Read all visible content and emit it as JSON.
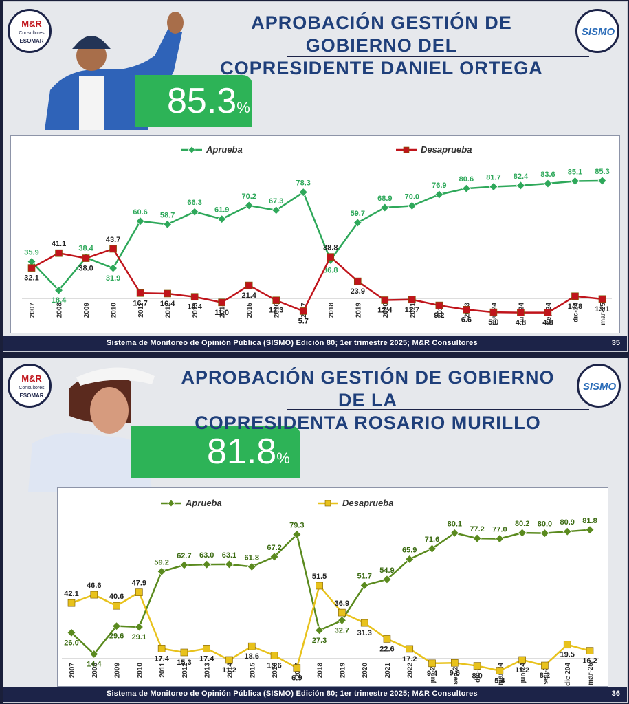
{
  "slides": [
    {
      "title_line1": "APROBACIÓN GESTIÓN DE GOBIERNO DEL",
      "title_line2": "COPRESIDENTE DANIEL ORTEGA",
      "headline_value": "85.3",
      "headline_unit": "%",
      "logo_left": {
        "name": "M&R",
        "sub": "Consultores",
        "esomar": "ESOMAR"
      },
      "logo_right": "SISMO",
      "footer": "Sistema de Monitoreo de Opinión Pública (SISMO) Edición 80; 1er trimestre 2025; M&R Consultores",
      "page_number": "35",
      "colors": {
        "aprueba": "#2ea85a",
        "desaprueba": "#c0141b",
        "badge": "#2db357"
      }
    },
    {
      "title_line1": "APROBACIÓN GESTIÓN DE GOBIERNO DE LA",
      "title_line2": "COPRESIDENTA ROSARIO MURILLO",
      "headline_value": "81.8",
      "headline_unit": "%",
      "logo_left": {
        "name": "M&R",
        "sub": "Consultores",
        "esomar": "ESOMAR"
      },
      "logo_right": "SISMO",
      "footer": "Sistema de Monitoreo de Opinión Pública (SISMO) Edición 80; 1er trimestre 2025; M&R Consultores",
      "page_number": "36",
      "colors": {
        "aprueba": "#5a8a1e",
        "desaprueba": "#e8c21c",
        "badge": "#2db357"
      }
    }
  ],
  "chart_data": [
    {
      "type": "line",
      "categories": [
        "2007",
        "2008",
        "2009",
        "2010",
        "2011",
        "2012",
        "2013",
        "2014",
        "2015",
        "2016",
        "2017",
        "2018",
        "2019",
        "2020",
        "2021",
        "2022",
        "2023",
        "mar-24",
        "jun-24",
        "sep-24",
        "dic-24",
        "mar-25"
      ],
      "series": [
        {
          "name": "Aprueba",
          "color": "#2ea85a",
          "marker": "diamond",
          "values": [
            35.9,
            18.4,
            38.4,
            31.9,
            60.6,
            58.7,
            66.3,
            61.9,
            70.2,
            67.3,
            78.3,
            36.8,
            59.7,
            68.9,
            70.0,
            76.9,
            80.6,
            81.7,
            82.4,
            83.6,
            85.1,
            85.3
          ]
        },
        {
          "name": "Desaprueba",
          "color": "#c0141b",
          "marker": "square",
          "values": [
            32.1,
            41.1,
            38.0,
            43.7,
            16.7,
            16.4,
            14.4,
            11.0,
            21.4,
            12.3,
            5.7,
            38.8,
            23.9,
            12.4,
            12.7,
            9.2,
            6.6,
            5.0,
            4.8,
            4.8,
            14.8,
            13.1
          ]
        }
      ],
      "legend_position": "top",
      "grid": false
    },
    {
      "type": "line",
      "categories": [
        "2007",
        "2008",
        "2009",
        "2010",
        "2011",
        "2012",
        "2013",
        "2014",
        "2015",
        "2016",
        "2017",
        "2018",
        "2019",
        "2020",
        "2021",
        "2022",
        "jun-23",
        "sep-23",
        "dic-23",
        "mar-24",
        "jun-24",
        "sep-24",
        "dic 204",
        "mar-25"
      ],
      "series": [
        {
          "name": "Aprueba",
          "color": "#5a8a1e",
          "marker": "diamond",
          "values": [
            26.0,
            14.4,
            29.6,
            29.1,
            59.2,
            62.7,
            63.0,
            63.1,
            61.8,
            67.2,
            79.3,
            27.3,
            32.7,
            51.7,
            54.9,
            65.9,
            71.6,
            80.1,
            77.2,
            77.0,
            80.2,
            80.0,
            80.9,
            81.8
          ]
        },
        {
          "name": "Desaprueba",
          "color": "#e8c21c",
          "marker": "square",
          "values": [
            42.1,
            46.6,
            40.6,
            47.9,
            17.4,
            15.3,
            17.4,
            11.2,
            18.6,
            13.6,
            6.9,
            51.5,
            36.9,
            31.3,
            22.6,
            17.2,
            9.4,
            9.6,
            8.0,
            5.4,
            11.2,
            8.2,
            19.5,
            16.2
          ]
        }
      ],
      "legend_position": "top",
      "grid": false
    }
  ]
}
